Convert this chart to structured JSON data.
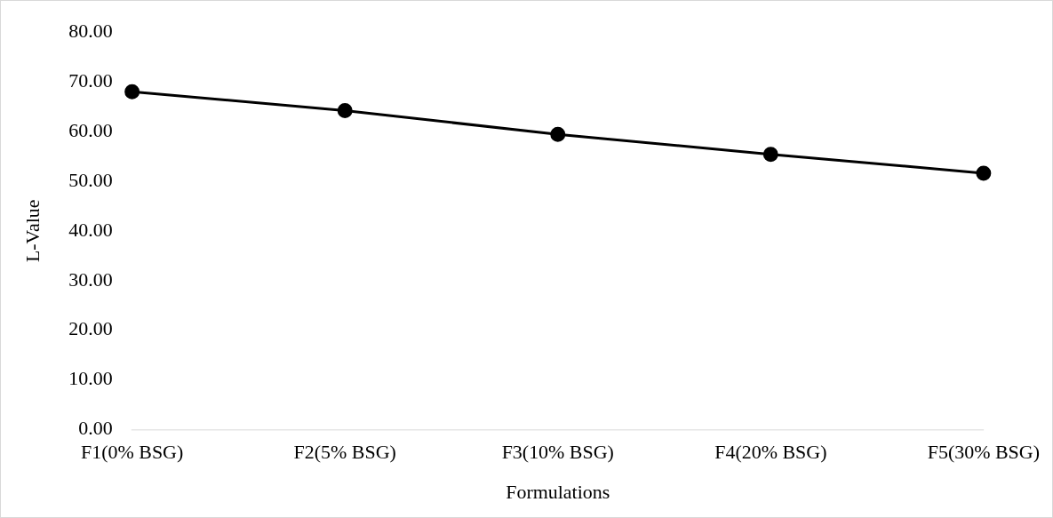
{
  "chart_data": {
    "type": "line",
    "xlabel": "Formulations",
    "ylabel": "L-Value",
    "categories": [
      "F1(0% BSG)",
      "F2(5% BSG)",
      "F3(10% BSG)",
      "F4(20% BSG)",
      "F5(30% BSG)"
    ],
    "series": [
      {
        "color": "#000000",
        "values": [
          68.0,
          64.2,
          59.4,
          55.4,
          51.6
        ]
      }
    ],
    "ylim": [
      0,
      80
    ],
    "yticks": [
      {
        "value": 0,
        "label": "0.00"
      },
      {
        "value": 10,
        "label": "10.00"
      },
      {
        "value": 20,
        "label": "20.00"
      },
      {
        "value": 30,
        "label": "30.00"
      },
      {
        "value": 40,
        "label": "40.00"
      },
      {
        "value": 50,
        "label": "50.00"
      },
      {
        "value": 60,
        "label": "60.00"
      },
      {
        "value": 70,
        "label": "70.00"
      },
      {
        "value": 80,
        "label": "80.00"
      }
    ],
    "grid": false,
    "legend": false,
    "marker": "circle",
    "line_style": "solid"
  }
}
